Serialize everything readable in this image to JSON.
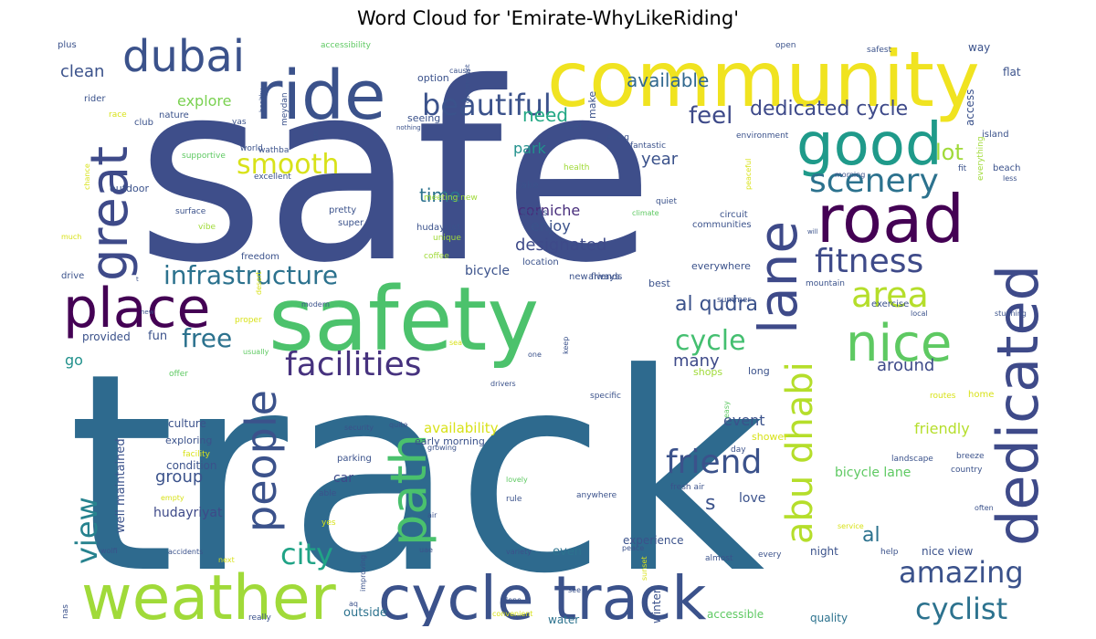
{
  "title": "Word Cloud for 'Emirate-WhyLikeRiding'",
  "words": [
    {
      "text": "safe",
      "color": "#3e4e8a"
    },
    {
      "text": "track",
      "color": "#2e6a8e"
    },
    {
      "text": "safety",
      "color": "#4cc26c"
    },
    {
      "text": "community",
      "color": "#f0e320"
    },
    {
      "text": "ride",
      "color": "#3b528b"
    },
    {
      "text": "road",
      "color": "#440154"
    },
    {
      "text": "good",
      "color": "#1f9a8a"
    },
    {
      "text": "lane",
      "color": "#3e4a89"
    },
    {
      "text": "dedicated",
      "color": "#3e4a89"
    },
    {
      "text": "cycle track",
      "color": "#3b528b"
    },
    {
      "text": "weather",
      "color": "#a0da39"
    },
    {
      "text": "nice",
      "color": "#5ec962"
    },
    {
      "text": "place",
      "color": "#440154"
    },
    {
      "text": "dubai",
      "color": "#3b528b"
    },
    {
      "text": "great",
      "color": "#3e4a89"
    },
    {
      "text": "path",
      "color": "#4ac16d"
    },
    {
      "text": "people",
      "color": "#3b528b"
    },
    {
      "text": "abu dhabi",
      "color": "#b5de2b"
    },
    {
      "text": "beautiful",
      "color": "#3b528b"
    },
    {
      "text": "scenery",
      "color": "#2c728e"
    },
    {
      "text": "facilities",
      "color": "#46327e"
    },
    {
      "text": "fitness",
      "color": "#3e4a89"
    },
    {
      "text": "area",
      "color": "#b5de2b"
    },
    {
      "text": "infrastructure",
      "color": "#2c728e"
    },
    {
      "text": "smooth",
      "color": "#d8e219"
    },
    {
      "text": "friend",
      "color": "#3b528b"
    },
    {
      "text": "city",
      "color": "#20a386"
    },
    {
      "text": "amazing",
      "color": "#3b528b"
    },
    {
      "text": "cyclist",
      "color": "#2c728e"
    },
    {
      "text": "view",
      "color": "#26828e"
    },
    {
      "text": "free",
      "color": "#2c728e"
    },
    {
      "text": "cycle",
      "color": "#44bf70"
    },
    {
      "text": "feel",
      "color": "#3e4a89"
    },
    {
      "text": "dedicated cycle",
      "color": "#3e4a89"
    },
    {
      "text": "lot",
      "color": "#a0da39"
    },
    {
      "text": "al qudra",
      "color": "#3b528b"
    },
    {
      "text": "available",
      "color": "#31688e"
    },
    {
      "text": "need",
      "color": "#22a884"
    },
    {
      "text": "time",
      "color": "#2c728e"
    },
    {
      "text": "designated",
      "color": "#3e4a89"
    },
    {
      "text": "corniche",
      "color": "#472d7b"
    },
    {
      "text": "enjoy",
      "color": "#3b528b"
    },
    {
      "text": "park",
      "color": "#21918c"
    },
    {
      "text": "year",
      "color": "#3b528b"
    },
    {
      "text": "clean",
      "color": "#3b528b"
    },
    {
      "text": "explore",
      "color": "#7ad151"
    },
    {
      "text": "s",
      "color": "#3b528b"
    },
    {
      "text": "al",
      "color": "#2c728e"
    },
    {
      "text": "many",
      "color": "#3e4a89"
    },
    {
      "text": "around",
      "color": "#3e4a89"
    },
    {
      "text": "group",
      "color": "#3b528b"
    },
    {
      "text": "event",
      "color": "#3b528b"
    },
    {
      "text": "friendly",
      "color": "#b5de2b"
    },
    {
      "text": "availability",
      "color": "#d8e219"
    },
    {
      "text": "bicycle",
      "color": "#3b528b"
    },
    {
      "text": "love",
      "color": "#3b528b"
    },
    {
      "text": "car",
      "color": "#3e4a89"
    },
    {
      "text": "bicycle lane",
      "color": "#5ec962"
    },
    {
      "text": "well maintained",
      "color": "#3b528b"
    },
    {
      "text": "hudayriyat",
      "color": "#3e4a89"
    },
    {
      "text": "go",
      "color": "#21918c"
    },
    {
      "text": "fun",
      "color": "#3b528b"
    },
    {
      "text": "provided",
      "color": "#3b528b"
    },
    {
      "text": "culture",
      "color": "#3b528b"
    },
    {
      "text": "exploring",
      "color": "#3b528b"
    },
    {
      "text": "condition",
      "color": "#3b528b"
    },
    {
      "text": "experience",
      "color": "#3b528b"
    },
    {
      "text": "even",
      "color": "#2c728e"
    },
    {
      "text": "outside",
      "color": "#2c728e"
    },
    {
      "text": "water",
      "color": "#2c728e"
    },
    {
      "text": "winter",
      "color": "#3b528b"
    },
    {
      "text": "night",
      "color": "#3b528b"
    },
    {
      "text": "nice view",
      "color": "#3b528b"
    },
    {
      "text": "accessible",
      "color": "#5ec962"
    },
    {
      "text": "quality",
      "color": "#2c728e"
    },
    {
      "text": "everywhere",
      "color": "#3b528b"
    },
    {
      "text": "way",
      "color": "#3b528b"
    },
    {
      "text": "flat",
      "color": "#3b528b"
    },
    {
      "text": "access",
      "color": "#3b528b"
    },
    {
      "text": "island",
      "color": "#3b528b"
    },
    {
      "text": "beach",
      "color": "#3b528b"
    },
    {
      "text": "outdoor",
      "color": "#3b528b"
    },
    {
      "text": "option",
      "color": "#3b528b"
    },
    {
      "text": "seeing",
      "color": "#3b528b"
    },
    {
      "text": "make",
      "color": "#3b528b"
    },
    {
      "text": "take",
      "color": "#3b528b"
    },
    {
      "text": "best",
      "color": "#3b528b"
    },
    {
      "text": "always",
      "color": "#3b528b"
    },
    {
      "text": "shops",
      "color": "#a0da39"
    },
    {
      "text": "long",
      "color": "#3b528b"
    },
    {
      "text": "rider",
      "color": "#3b528b"
    },
    {
      "text": "plus",
      "color": "#3b528b"
    },
    {
      "text": "club",
      "color": "#3b528b"
    },
    {
      "text": "nature",
      "color": "#3b528b"
    },
    {
      "text": "meet",
      "color": "#3b528b"
    },
    {
      "text": "freedom",
      "color": "#3b528b"
    },
    {
      "text": "pretty",
      "color": "#3b528b"
    },
    {
      "text": "super",
      "color": "#3b528b"
    },
    {
      "text": "stress",
      "color": "#3b528b"
    },
    {
      "text": "hudayriat",
      "color": "#3b528b"
    },
    {
      "text": "location",
      "color": "#3b528b"
    },
    {
      "text": "new friends",
      "color": "#3b528b"
    },
    {
      "text": "circuit",
      "color": "#3b528b"
    },
    {
      "text": "communities",
      "color": "#3b528b"
    },
    {
      "text": "exercise",
      "color": "#3b528b"
    },
    {
      "text": "mountain",
      "color": "#3b528b"
    },
    {
      "text": "summer",
      "color": "#3b528b"
    },
    {
      "text": "early morning",
      "color": "#3b528b"
    },
    {
      "text": "parking",
      "color": "#3b528b"
    },
    {
      "text": "shower",
      "color": "#d8e219"
    },
    {
      "text": "day",
      "color": "#3b528b"
    },
    {
      "text": "country",
      "color": "#3b528b"
    },
    {
      "text": "help",
      "color": "#3b528b"
    },
    {
      "text": "almost",
      "color": "#3b528b"
    },
    {
      "text": "every",
      "color": "#3b528b"
    },
    {
      "text": "landscape",
      "color": "#3b528b"
    },
    {
      "text": "breeze",
      "color": "#3b528b"
    },
    {
      "text": "home",
      "color": "#d8e219"
    },
    {
      "text": "routes",
      "color": "#d8e219"
    },
    {
      "text": "drive",
      "color": "#3b528b"
    },
    {
      "text": "excellent",
      "color": "#3b528b"
    },
    {
      "text": "surface",
      "color": "#3b528b"
    },
    {
      "text": "supportive",
      "color": "#5ec962"
    },
    {
      "text": "world",
      "color": "#3b528b"
    },
    {
      "text": "wathba",
      "color": "#3b528b"
    },
    {
      "text": "meydan",
      "color": "#3b528b"
    },
    {
      "text": "yas",
      "color": "#3b528b"
    },
    {
      "text": "race",
      "color": "#d8e219"
    },
    {
      "text": "accessibility",
      "color": "#5ec962"
    },
    {
      "text": "open",
      "color": "#3b528b"
    },
    {
      "text": "safest",
      "color": "#3b528b"
    },
    {
      "text": "cause",
      "color": "#3b528b"
    },
    {
      "text": "along",
      "color": "#3b528b"
    },
    {
      "text": "fantastic",
      "color": "#3b528b"
    },
    {
      "text": "environment",
      "color": "#3b528b"
    },
    {
      "text": "morning",
      "color": "#3b528b"
    },
    {
      "text": "fit",
      "color": "#3b528b"
    },
    {
      "text": "less",
      "color": "#3b528b"
    },
    {
      "text": "everything",
      "color": "#a0da39"
    },
    {
      "text": "peaceful",
      "color": "#d8e219"
    },
    {
      "text": "quiet",
      "color": "#3b528b"
    },
    {
      "text": "climate",
      "color": "#5ec962"
    },
    {
      "text": "health",
      "color": "#a0da39"
    },
    {
      "text": "unique",
      "color": "#a0da39"
    },
    {
      "text": "meeting new",
      "color": "#a0da39"
    },
    {
      "text": "coffee",
      "color": "#a0da39"
    },
    {
      "text": "vibe",
      "color": "#a0da39"
    },
    {
      "text": "chance",
      "color": "#d8e219"
    },
    {
      "text": "much",
      "color": "#d8e219"
    },
    {
      "text": "desert",
      "color": "#d8e219"
    },
    {
      "text": "proper",
      "color": "#d8e219"
    },
    {
      "text": "usually",
      "color": "#5ec962"
    },
    {
      "text": "offer",
      "color": "#5ec962"
    },
    {
      "text": "facility",
      "color": "#d8e219"
    },
    {
      "text": "empty",
      "color": "#d8e219"
    },
    {
      "text": "yes",
      "color": "#d8e219"
    },
    {
      "text": "wolfi",
      "color": "#3b528b"
    },
    {
      "text": "accidents",
      "color": "#3b528b"
    },
    {
      "text": "next",
      "color": "#d8e219"
    },
    {
      "text": "nas",
      "color": "#3b528b"
    },
    {
      "text": "really",
      "color": "#3b528b"
    },
    {
      "text": "improving",
      "color": "#3b528b"
    },
    {
      "text": "aq",
      "color": "#3b528b"
    },
    {
      "text": "done",
      "color": "#3b528b"
    },
    {
      "text": "convenient",
      "color": "#d8e219"
    },
    {
      "text": "see",
      "color": "#3b528b"
    },
    {
      "text": "sunset",
      "color": "#d8e219"
    },
    {
      "text": "peace",
      "color": "#3b528b"
    },
    {
      "text": "variety",
      "color": "#3b528b"
    },
    {
      "text": "uae",
      "color": "#3b528b"
    },
    {
      "text": "air",
      "color": "#3b528b"
    },
    {
      "text": "rule",
      "color": "#3b528b"
    },
    {
      "text": "lovely",
      "color": "#5ec962"
    },
    {
      "text": "fresh air",
      "color": "#3b528b"
    },
    {
      "text": "anywhere",
      "color": "#3b528b"
    },
    {
      "text": "able",
      "color": "#3b528b"
    },
    {
      "text": "growing",
      "color": "#3b528b"
    },
    {
      "text": "quite",
      "color": "#3b528b"
    },
    {
      "text": "security",
      "color": "#3b528b"
    },
    {
      "text": "specific",
      "color": "#3b528b"
    },
    {
      "text": "drivers",
      "color": "#3b528b"
    },
    {
      "text": "sea",
      "color": "#d8e219"
    },
    {
      "text": "one",
      "color": "#3b528b"
    },
    {
      "text": "keep",
      "color": "#3b528b"
    },
    {
      "text": "modern",
      "color": "#3b528b"
    },
    {
      "text": "local",
      "color": "#3b528b"
    },
    {
      "text": "stunning",
      "color": "#3b528b"
    },
    {
      "text": "service",
      "color": "#d8e219"
    },
    {
      "text": "often",
      "color": "#3b528b"
    },
    {
      "text": "easy",
      "color": "#5ec962"
    },
    {
      "text": "healthy",
      "color": "#3b528b"
    },
    {
      "text": "government",
      "color": "#3b528b"
    },
    {
      "text": "nothing",
      "color": "#3b528b"
    },
    {
      "text": "etc",
      "color": "#3b528b"
    },
    {
      "text": "new",
      "color": "#3b528b"
    },
    {
      "text": "will",
      "color": "#3b528b"
    },
    {
      "text": "t",
      "color": "#3b528b"
    },
    {
      "text": "m",
      "color": "#3b528b"
    }
  ]
}
